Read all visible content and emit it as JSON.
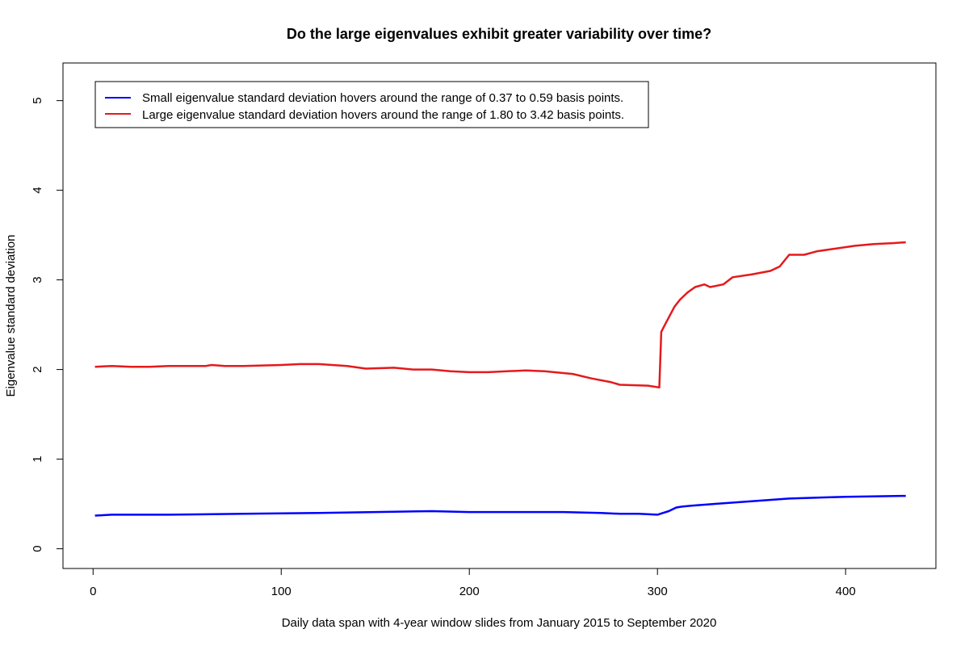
{
  "chart_data": {
    "type": "line",
    "title": "Do the large eigenvalues exhibit greater variability over time?",
    "xlabel": "Daily data span with 4-year window slides from January 2015 to September 2020",
    "ylabel": "Eigenvalue standard deviation",
    "xlim": [
      -16,
      448
    ],
    "ylim": [
      -0.22,
      5.42
    ],
    "xticks": [
      0,
      100,
      200,
      300,
      400
    ],
    "yticks": [
      0,
      1,
      2,
      3,
      4,
      5
    ],
    "grid": false,
    "legend_position": "top-left",
    "series": [
      {
        "name": "Small eigenvalue standard deviation hovers around the range of 0.37 to 0.59 basis points.",
        "color": "#0000ff",
        "x": [
          1,
          10,
          40,
          80,
          120,
          150,
          180,
          200,
          250,
          270,
          280,
          290,
          300,
          303,
          306,
          310,
          313,
          318,
          330,
          350,
          370,
          400,
          430,
          432
        ],
        "y": [
          0.37,
          0.38,
          0.38,
          0.39,
          0.4,
          0.41,
          0.42,
          0.41,
          0.41,
          0.4,
          0.39,
          0.39,
          0.38,
          0.4,
          0.42,
          0.46,
          0.47,
          0.48,
          0.5,
          0.53,
          0.56,
          0.58,
          0.59,
          0.59
        ]
      },
      {
        "name": "Large eigenvalue standard deviation hovers around the range of 1.80 to 3.42 basis points.",
        "color": "#e41a1c",
        "x": [
          1,
          10,
          20,
          30,
          40,
          50,
          60,
          63,
          70,
          80,
          100,
          110,
          120,
          135,
          145,
          160,
          170,
          180,
          190,
          200,
          210,
          220,
          230,
          240,
          255,
          265,
          275,
          280,
          295,
          301,
          302,
          304,
          306,
          309,
          312,
          316,
          320,
          325,
          328,
          335,
          340,
          350,
          360,
          365,
          370,
          378,
          385,
          395,
          405,
          415,
          425,
          432
        ],
        "y": [
          2.03,
          2.04,
          2.03,
          2.03,
          2.04,
          2.04,
          2.04,
          2.05,
          2.04,
          2.04,
          2.05,
          2.06,
          2.06,
          2.04,
          2.01,
          2.02,
          2.0,
          2.0,
          1.98,
          1.97,
          1.97,
          1.98,
          1.99,
          1.98,
          1.95,
          1.9,
          1.86,
          1.83,
          1.82,
          1.8,
          2.42,
          2.5,
          2.58,
          2.7,
          2.78,
          2.86,
          2.92,
          2.95,
          2.92,
          2.95,
          3.03,
          3.06,
          3.1,
          3.15,
          3.28,
          3.28,
          3.32,
          3.35,
          3.38,
          3.4,
          3.41,
          3.42
        ]
      }
    ]
  }
}
